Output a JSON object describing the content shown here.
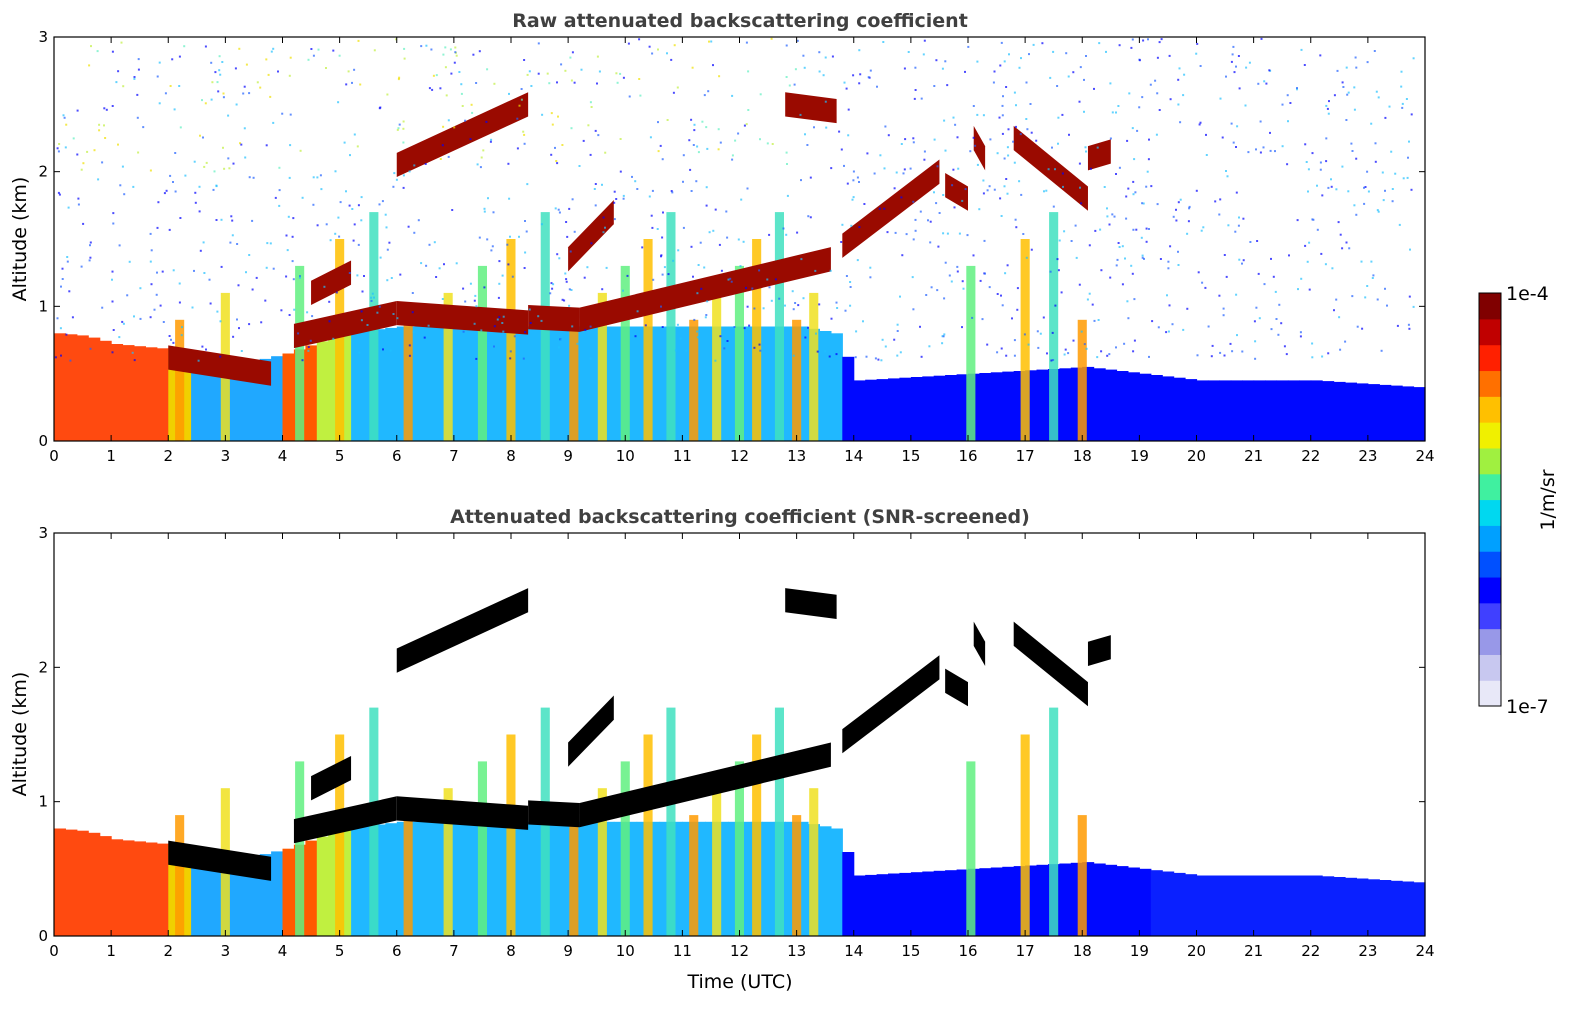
{
  "chart_data": [
    {
      "type": "heatmap",
      "title": "Raw attenuated backscattering coefficient",
      "xlabel": "",
      "ylabel": "Altitude (km)",
      "xlim": [
        0,
        24
      ],
      "ylim": [
        0,
        3
      ],
      "xticks": [
        0,
        1,
        2,
        3,
        4,
        5,
        6,
        7,
        8,
        9,
        10,
        11,
        12,
        13,
        14,
        15,
        16,
        17,
        18,
        19,
        20,
        21,
        22,
        23,
        24
      ],
      "yticks": [
        0,
        1,
        2,
        3
      ],
      "data_extent_x": [
        0,
        23.8
      ],
      "surface_aerosol_layer": [
        {
          "x": 0,
          "top": 0.8
        },
        {
          "x": 0.5,
          "top": 0.78
        },
        {
          "x": 1,
          "top": 0.72
        },
        {
          "x": 1.5,
          "top": 0.7
        },
        {
          "x": 2,
          "top": 0.68
        },
        {
          "x": 2.5,
          "top": 0.62
        },
        {
          "x": 3,
          "top": 0.58
        },
        {
          "x": 3.5,
          "top": 0.6
        },
        {
          "x": 4,
          "top": 0.65
        },
        {
          "x": 5,
          "top": 0.8
        },
        {
          "x": 6,
          "top": 0.85
        },
        {
          "x": 7,
          "top": 0.85
        },
        {
          "x": 8,
          "top": 0.85
        },
        {
          "x": 9,
          "top": 0.85
        },
        {
          "x": 10,
          "top": 0.85
        },
        {
          "x": 11,
          "top": 0.85
        },
        {
          "x": 12,
          "top": 0.85
        },
        {
          "x": 13,
          "top": 0.85
        },
        {
          "x": 13.6,
          "top": 0.8
        },
        {
          "x": 14,
          "top": 0.45
        },
        {
          "x": 16,
          "top": 0.5
        },
        {
          "x": 18,
          "top": 0.55
        },
        {
          "x": 20,
          "top": 0.45
        },
        {
          "x": 22,
          "top": 0.45
        },
        {
          "x": 23.8,
          "top": 0.4
        }
      ],
      "cloud_layers": [
        {
          "x": [
            2.0,
            3.8
          ],
          "alt": [
            0.62,
            0.5
          ]
        },
        {
          "x": [
            4.2,
            6.0
          ],
          "alt": [
            0.78,
            0.95
          ]
        },
        {
          "x": [
            4.5,
            5.2
          ],
          "alt": [
            1.1,
            1.25
          ]
        },
        {
          "x": [
            6.0,
            8.3
          ],
          "alt": [
            2.05,
            2.5
          ]
        },
        {
          "x": [
            6.0,
            8.3
          ],
          "alt": [
            0.95,
            0.88
          ]
        },
        {
          "x": [
            8.3,
            9.2
          ],
          "alt": [
            0.92,
            0.9
          ]
        },
        {
          "x": [
            9.2,
            13.6
          ],
          "alt": [
            0.9,
            1.35
          ]
        },
        {
          "x": [
            9.0,
            9.8
          ],
          "alt": [
            1.35,
            1.7
          ]
        },
        {
          "x": [
            12.8,
            13.7
          ],
          "alt": [
            2.5,
            2.45
          ]
        },
        {
          "x": [
            13.8,
            15.5
          ],
          "alt": [
            1.45,
            2.0
          ]
        },
        {
          "x": [
            15.6,
            16.0
          ],
          "alt": [
            1.9,
            1.8
          ]
        },
        {
          "x": [
            16.1,
            16.3
          ],
          "alt": [
            2.25,
            2.1
          ]
        },
        {
          "x": [
            16.8,
            18.1
          ],
          "alt": [
            2.25,
            1.8
          ]
        },
        {
          "x": [
            18.1,
            18.5
          ],
          "alt": [
            2.1,
            2.15
          ]
        }
      ],
      "precip_shafts": [
        2.2,
        3.0,
        4.3,
        5.0,
        5.6,
        6.2,
        6.9,
        7.5,
        8.0,
        8.6,
        9.1,
        9.6,
        10.0,
        10.4,
        10.8,
        11.2,
        11.6,
        12.0,
        12.3,
        12.7,
        13.0,
        13.3,
        16.05,
        17.0,
        17.5,
        18.0
      ]
    },
    {
      "type": "heatmap",
      "title": "Attenuated backscattering coefficient (SNR-screened)",
      "xlabel": "Time (UTC)",
      "ylabel": "Altitude (km)",
      "xlim": [
        0,
        24
      ],
      "ylim": [
        0,
        3
      ],
      "xticks": [
        0,
        1,
        2,
        3,
        4,
        5,
        6,
        7,
        8,
        9,
        10,
        11,
        12,
        13,
        14,
        15,
        16,
        17,
        18,
        19,
        20,
        21,
        22,
        23,
        24
      ],
      "yticks": [
        0,
        1,
        2,
        3
      ],
      "data_extent_x": [
        0,
        23.8
      ]
    }
  ],
  "colorbar": {
    "label": "1/m/sr",
    "min_label": "1e-7",
    "max_label": "1e-4",
    "colors": [
      "#e8e8f8",
      "#c8c8f0",
      "#9898e8",
      "#4040ff",
      "#0000ff",
      "#0050ff",
      "#00a0ff",
      "#00d8f0",
      "#40f0a0",
      "#a0f040",
      "#f0f000",
      "#ffc000",
      "#ff7000",
      "#ff2000",
      "#c00000",
      "#800000"
    ]
  }
}
